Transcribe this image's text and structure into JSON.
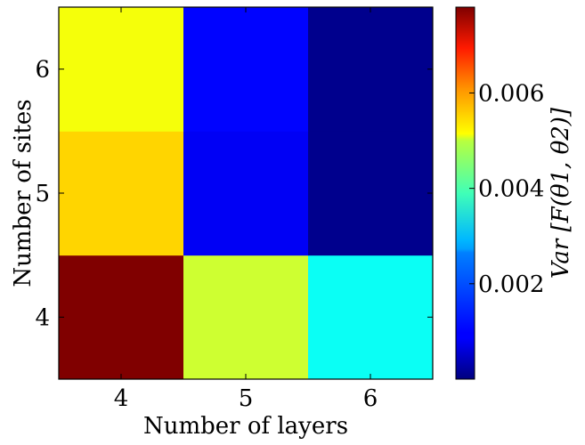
{
  "chart_data": {
    "type": "heatmap",
    "xlabel": "Number of layers",
    "ylabel": "Number of sites",
    "x_categories": [
      "4",
      "5",
      "6"
    ],
    "y_categories": [
      "4",
      "5",
      "6"
    ],
    "values": [
      [
        0.0078,
        0.0045,
        0.003
      ],
      [
        0.0052,
        0.0009,
        0.0001
      ],
      [
        0.0048,
        0.001,
        0.0001
      ]
    ],
    "colormap": "jet",
    "colorbar": {
      "label": "Var [F(θ1, θ2)]",
      "range": [
        0.0,
        0.0078
      ],
      "ticks": [
        0.002,
        0.004,
        0.006
      ],
      "tick_labels": [
        "0.002",
        "0.004",
        "0.006"
      ]
    }
  }
}
